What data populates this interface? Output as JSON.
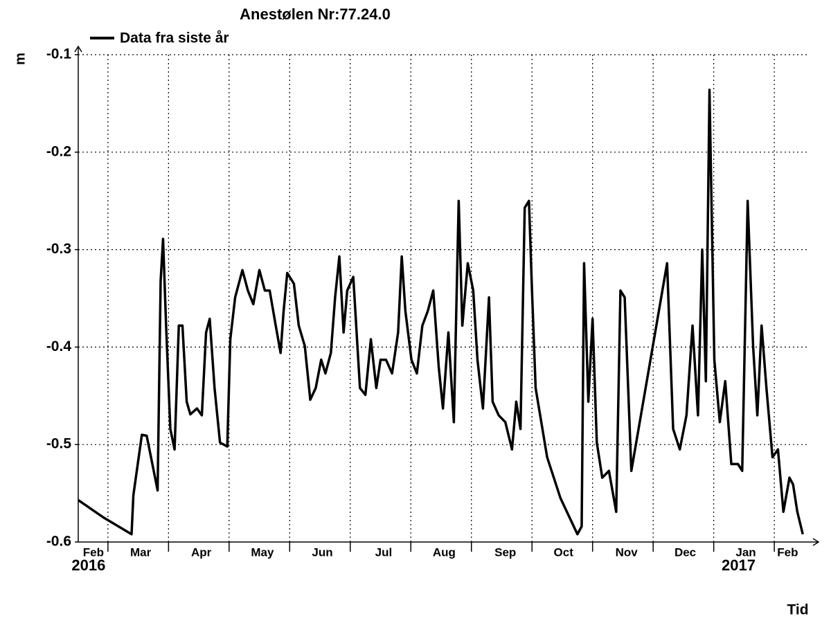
{
  "chart_data": {
    "type": "line",
    "title": "Anestølen Nr:77.24.0",
    "y_label": "m",
    "x_label": "Tid",
    "xlim": [
      0.51,
      12.57
    ],
    "ylim": [
      -0.6,
      -0.1
    ],
    "yticks": [
      -0.6,
      -0.5,
      -0.4,
      -0.3,
      -0.2,
      -0.1
    ],
    "xticks": [
      {
        "value": 0.76,
        "label": "Feb"
      },
      {
        "value": 1.54,
        "label": "Mar"
      },
      {
        "value": 2.54,
        "label": "Apr"
      },
      {
        "value": 3.55,
        "label": "May"
      },
      {
        "value": 4.54,
        "label": "Jun"
      },
      {
        "value": 5.55,
        "label": "Jul"
      },
      {
        "value": 6.55,
        "label": "Aug"
      },
      {
        "value": 7.56,
        "label": "Sep"
      },
      {
        "value": 8.52,
        "label": "Oct"
      },
      {
        "value": 9.56,
        "label": "Nov"
      },
      {
        "value": 10.53,
        "label": "Dec"
      },
      {
        "value": 11.53,
        "label": "Jan"
      },
      {
        "value": 12.22,
        "label": "Feb"
      }
    ],
    "x_gridlines": [
      1,
      2,
      3,
      4,
      5,
      6,
      7,
      8,
      9,
      10,
      11,
      12
    ],
    "annotations": [
      {
        "text": "2016",
        "x": 0.68
      },
      {
        "text": "2017",
        "x": 11.41
      }
    ],
    "grid": true,
    "x": [
      0.51,
      0.93,
      1.39,
      1.42,
      1.56,
      1.64,
      1.82,
      1.87,
      1.91,
      1.96,
      2.03,
      2.1,
      2.17,
      2.23,
      2.3,
      2.36,
      2.47,
      2.55,
      2.62,
      2.68,
      2.76,
      2.85,
      2.97,
      3.02,
      3.1,
      3.22,
      3.31,
      3.4,
      3.5,
      3.59,
      3.67,
      3.77,
      3.85,
      3.9,
      3.96,
      4.07,
      4.15,
      4.25,
      4.34,
      4.43,
      4.52,
      4.59,
      4.68,
      4.75,
      4.82,
      4.89,
      4.95,
      5.05,
      5.16,
      5.25,
      5.34,
      5.43,
      5.5,
      5.59,
      5.69,
      5.79,
      5.85,
      5.91,
      6.01,
      6.1,
      6.19,
      6.28,
      6.37,
      6.46,
      6.53,
      6.62,
      6.71,
      6.79,
      6.85,
      6.94,
      7.03,
      7.1,
      7.19,
      7.29,
      7.35,
      7.45,
      7.56,
      7.67,
      7.74,
      7.81,
      7.88,
      7.95,
      8.0,
      8.06,
      8.25,
      8.47,
      8.75,
      8.82,
      8.86,
      8.93,
      9.0,
      9.07,
      9.16,
      9.27,
      9.39,
      9.46,
      9.53,
      9.64,
      10.23,
      10.33,
      10.44,
      10.55,
      10.65,
      10.74,
      10.81,
      10.87,
      10.93,
      11.01,
      11.1,
      11.19,
      11.29,
      11.4,
      11.47,
      11.56,
      11.65,
      11.72,
      11.79,
      11.87,
      11.97,
      12.06,
      12.15,
      12.25,
      12.31,
      12.38,
      12.47
    ],
    "series": [
      {
        "name": "Data fra siste år",
        "color": "#000000",
        "values": [
          -0.557,
          -0.575,
          -0.592,
          -0.552,
          -0.49,
          -0.491,
          -0.547,
          -0.332,
          -0.289,
          -0.378,
          -0.484,
          -0.505,
          -0.378,
          -0.378,
          -0.456,
          -0.469,
          -0.463,
          -0.47,
          -0.385,
          -0.371,
          -0.442,
          -0.498,
          -0.502,
          -0.392,
          -0.349,
          -0.321,
          -0.342,
          -0.356,
          -0.321,
          -0.342,
          -0.342,
          -0.378,
          -0.406,
          -0.363,
          -0.324,
          -0.335,
          -0.378,
          -0.399,
          -0.454,
          -0.442,
          -0.413,
          -0.427,
          -0.406,
          -0.349,
          -0.307,
          -0.385,
          -0.342,
          -0.328,
          -0.442,
          -0.449,
          -0.392,
          -0.442,
          -0.413,
          -0.413,
          -0.427,
          -0.385,
          -0.307,
          -0.363,
          -0.413,
          -0.427,
          -0.378,
          -0.363,
          -0.342,
          -0.42,
          -0.463,
          -0.385,
          -0.477,
          -0.25,
          -0.378,
          -0.314,
          -0.342,
          -0.413,
          -0.463,
          -0.349,
          -0.456,
          -0.47,
          -0.477,
          -0.505,
          -0.456,
          -0.484,
          -0.257,
          -0.25,
          -0.342,
          -0.442,
          -0.513,
          -0.555,
          -0.592,
          -0.584,
          -0.314,
          -0.456,
          -0.371,
          -0.498,
          -0.534,
          -0.527,
          -0.569,
          -0.342,
          -0.349,
          -0.527,
          -0.314,
          -0.484,
          -0.505,
          -0.47,
          -0.378,
          -0.47,
          -0.3,
          -0.435,
          -0.136,
          -0.413,
          -0.477,
          -0.435,
          -0.52,
          -0.52,
          -0.527,
          -0.25,
          -0.399,
          -0.47,
          -0.378,
          -0.442,
          -0.513,
          -0.505,
          -0.569,
          -0.534,
          -0.541,
          -0.569,
          -0.592
        ]
      }
    ]
  }
}
